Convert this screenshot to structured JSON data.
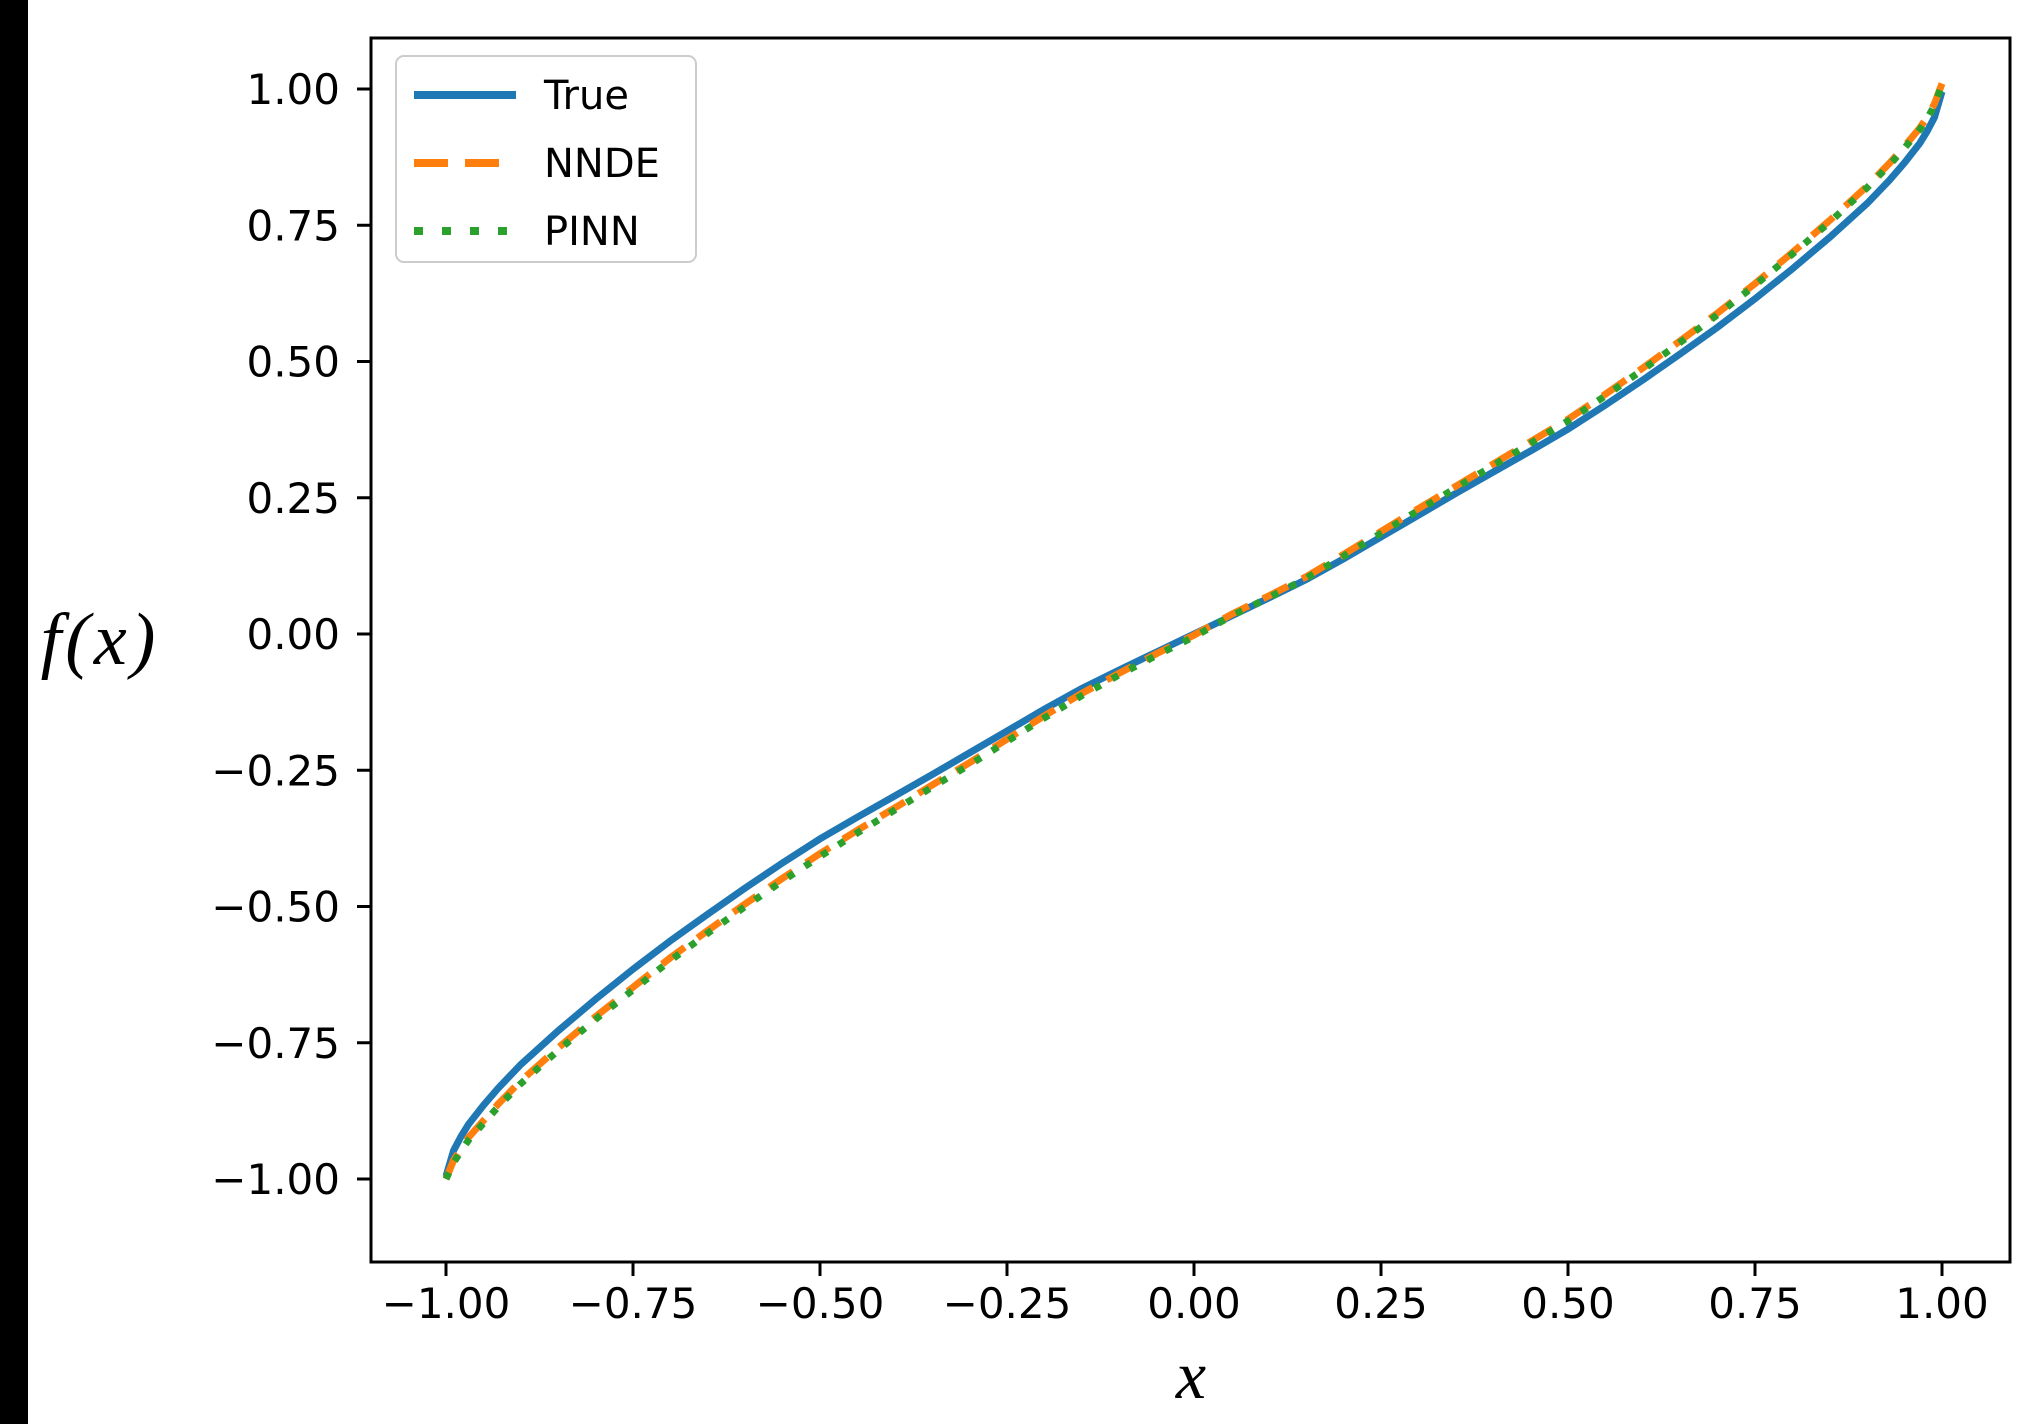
{
  "chart_data": {
    "type": "line",
    "title": "",
    "xlabel": "x",
    "ylabel": "f(x)",
    "xlim": [
      -1.1,
      1.1
    ],
    "ylim": [
      -1.15,
      1.1
    ],
    "grid": false,
    "legend_position": "upper left",
    "x_ticks": [
      -1.0,
      -0.75,
      -0.5,
      -0.25,
      0.0,
      0.25,
      0.5,
      0.75,
      1.0
    ],
    "x_tick_labels": [
      "−1.00",
      "−0.75",
      "−0.50",
      "−0.25",
      "0.00",
      "0.25",
      "0.50",
      "0.75",
      "1.00"
    ],
    "y_ticks": [
      1.0,
      0.75,
      0.5,
      0.25,
      0.0,
      -0.25,
      -0.5,
      -0.75,
      -1.0
    ],
    "y_tick_labels": [
      "1.00",
      "0.75",
      "0.50",
      "0.25",
      "0.00",
      "−0.25",
      "−0.50",
      "−0.75",
      "−1.00"
    ],
    "series": [
      {
        "name": "True",
        "style": "solid",
        "color": "#1f77b4",
        "points": [
          [
            -1.0,
            -0.995
          ],
          [
            -0.99,
            -0.948
          ],
          [
            -0.98,
            -0.922
          ],
          [
            -0.97,
            -0.9
          ],
          [
            -0.95,
            -0.865
          ],
          [
            -0.93,
            -0.833
          ],
          [
            -0.9,
            -0.79
          ],
          [
            -0.85,
            -0.728
          ],
          [
            -0.8,
            -0.67
          ],
          [
            -0.75,
            -0.615
          ],
          [
            -0.7,
            -0.563
          ],
          [
            -0.65,
            -0.514
          ],
          [
            -0.6,
            -0.466
          ],
          [
            -0.55,
            -0.42
          ],
          [
            -0.5,
            -0.376
          ],
          [
            -0.45,
            -0.336
          ],
          [
            -0.4,
            -0.297
          ],
          [
            -0.35,
            -0.258
          ],
          [
            -0.3,
            -0.218
          ],
          [
            -0.25,
            -0.178
          ],
          [
            -0.2,
            -0.138
          ],
          [
            -0.15,
            -0.1
          ],
          [
            -0.1,
            -0.066
          ],
          [
            -0.05,
            -0.033
          ],
          [
            0.0,
            0.0
          ],
          [
            0.05,
            0.033
          ],
          [
            0.1,
            0.066
          ],
          [
            0.15,
            0.1
          ],
          [
            0.2,
            0.138
          ],
          [
            0.25,
            0.178
          ],
          [
            0.3,
            0.218
          ],
          [
            0.35,
            0.258
          ],
          [
            0.4,
            0.297
          ],
          [
            0.45,
            0.336
          ],
          [
            0.5,
            0.376
          ],
          [
            0.55,
            0.42
          ],
          [
            0.6,
            0.466
          ],
          [
            0.65,
            0.514
          ],
          [
            0.7,
            0.563
          ],
          [
            0.75,
            0.615
          ],
          [
            0.8,
            0.67
          ],
          [
            0.85,
            0.728
          ],
          [
            0.9,
            0.79
          ],
          [
            0.93,
            0.833
          ],
          [
            0.95,
            0.865
          ],
          [
            0.97,
            0.9
          ],
          [
            0.98,
            0.922
          ],
          [
            0.99,
            0.948
          ],
          [
            1.0,
            0.995
          ]
        ]
      },
      {
        "name": "NNDE",
        "style": "dashed",
        "color": "#ff7f0e",
        "points": [
          [
            -1.0,
            -1.0
          ],
          [
            -0.99,
            -0.966
          ],
          [
            -0.98,
            -0.944
          ],
          [
            -0.97,
            -0.924
          ],
          [
            -0.95,
            -0.893
          ],
          [
            -0.93,
            -0.862
          ],
          [
            -0.9,
            -0.82
          ],
          [
            -0.85,
            -0.759
          ],
          [
            -0.8,
            -0.702
          ],
          [
            -0.75,
            -0.648
          ],
          [
            -0.7,
            -0.594
          ],
          [
            -0.65,
            -0.544
          ],
          [
            -0.6,
            -0.495
          ],
          [
            -0.55,
            -0.448
          ],
          [
            -0.5,
            -0.403
          ],
          [
            -0.45,
            -0.36
          ],
          [
            -0.4,
            -0.319
          ],
          [
            -0.35,
            -0.277
          ],
          [
            -0.3,
            -0.236
          ],
          [
            -0.25,
            -0.193
          ],
          [
            -0.2,
            -0.15
          ],
          [
            -0.15,
            -0.109
          ],
          [
            -0.1,
            -0.072
          ],
          [
            -0.05,
            -0.036
          ],
          [
            0.0,
            -0.002
          ],
          [
            0.05,
            0.036
          ],
          [
            0.1,
            0.07
          ],
          [
            0.15,
            0.105
          ],
          [
            0.2,
            0.146
          ],
          [
            0.25,
            0.188
          ],
          [
            0.3,
            0.23
          ],
          [
            0.35,
            0.271
          ],
          [
            0.4,
            0.312
          ],
          [
            0.45,
            0.353
          ],
          [
            0.5,
            0.394
          ],
          [
            0.55,
            0.44
          ],
          [
            0.6,
            0.488
          ],
          [
            0.65,
            0.538
          ],
          [
            0.7,
            0.589
          ],
          [
            0.75,
            0.643
          ],
          [
            0.8,
            0.7
          ],
          [
            0.85,
            0.759
          ],
          [
            0.9,
            0.822
          ],
          [
            0.93,
            0.864
          ],
          [
            0.95,
            0.895
          ],
          [
            0.97,
            0.928
          ],
          [
            0.98,
            0.948
          ],
          [
            0.99,
            0.973
          ],
          [
            1.0,
            1.01
          ]
        ]
      },
      {
        "name": "PINN",
        "style": "dotted",
        "color": "#2ca02c",
        "points": [
          [
            -1.0,
            -1.0
          ],
          [
            -0.99,
            -0.97
          ],
          [
            -0.98,
            -0.949
          ],
          [
            -0.97,
            -0.929
          ],
          [
            -0.95,
            -0.898
          ],
          [
            -0.93,
            -0.867
          ],
          [
            -0.9,
            -0.825
          ],
          [
            -0.85,
            -0.764
          ],
          [
            -0.8,
            -0.707
          ],
          [
            -0.75,
            -0.653
          ],
          [
            -0.7,
            -0.599
          ],
          [
            -0.65,
            -0.549
          ],
          [
            -0.6,
            -0.5
          ],
          [
            -0.55,
            -0.453
          ],
          [
            -0.5,
            -0.408
          ],
          [
            -0.45,
            -0.365
          ],
          [
            -0.4,
            -0.323
          ],
          [
            -0.35,
            -0.281
          ],
          [
            -0.3,
            -0.24
          ],
          [
            -0.25,
            -0.197
          ],
          [
            -0.2,
            -0.154
          ],
          [
            -0.15,
            -0.113
          ],
          [
            -0.1,
            -0.075
          ],
          [
            -0.05,
            -0.039
          ],
          [
            0.0,
            -0.005
          ],
          [
            0.05,
            0.033
          ],
          [
            0.1,
            0.067
          ],
          [
            0.15,
            0.102
          ],
          [
            0.2,
            0.143
          ],
          [
            0.25,
            0.185
          ],
          [
            0.3,
            0.227
          ],
          [
            0.35,
            0.268
          ],
          [
            0.4,
            0.309
          ],
          [
            0.45,
            0.35
          ],
          [
            0.5,
            0.391
          ],
          [
            0.55,
            0.437
          ],
          [
            0.6,
            0.485
          ],
          [
            0.65,
            0.535
          ],
          [
            0.7,
            0.586
          ],
          [
            0.75,
            0.64
          ],
          [
            0.8,
            0.697
          ],
          [
            0.85,
            0.756
          ],
          [
            0.9,
            0.819
          ],
          [
            0.93,
            0.861
          ],
          [
            0.95,
            0.892
          ],
          [
            0.97,
            0.925
          ],
          [
            0.98,
            0.945
          ],
          [
            0.99,
            0.97
          ],
          [
            1.0,
            1.008
          ]
        ]
      }
    ],
    "legend": {
      "items": [
        {
          "label": "True",
          "color": "#1f77b4",
          "style": "solid"
        },
        {
          "label": "NNDE",
          "color": "#ff7f0e",
          "style": "dashed"
        },
        {
          "label": "PINN",
          "color": "#2ca02c",
          "style": "dotted"
        }
      ]
    }
  },
  "colors": {
    "true_line": "#1f77b4",
    "nnde_line": "#ff7f0e",
    "pinn_line": "#2ca02c",
    "axes": "#000000",
    "legend_border": "#cccccc",
    "background": "#ffffff"
  }
}
